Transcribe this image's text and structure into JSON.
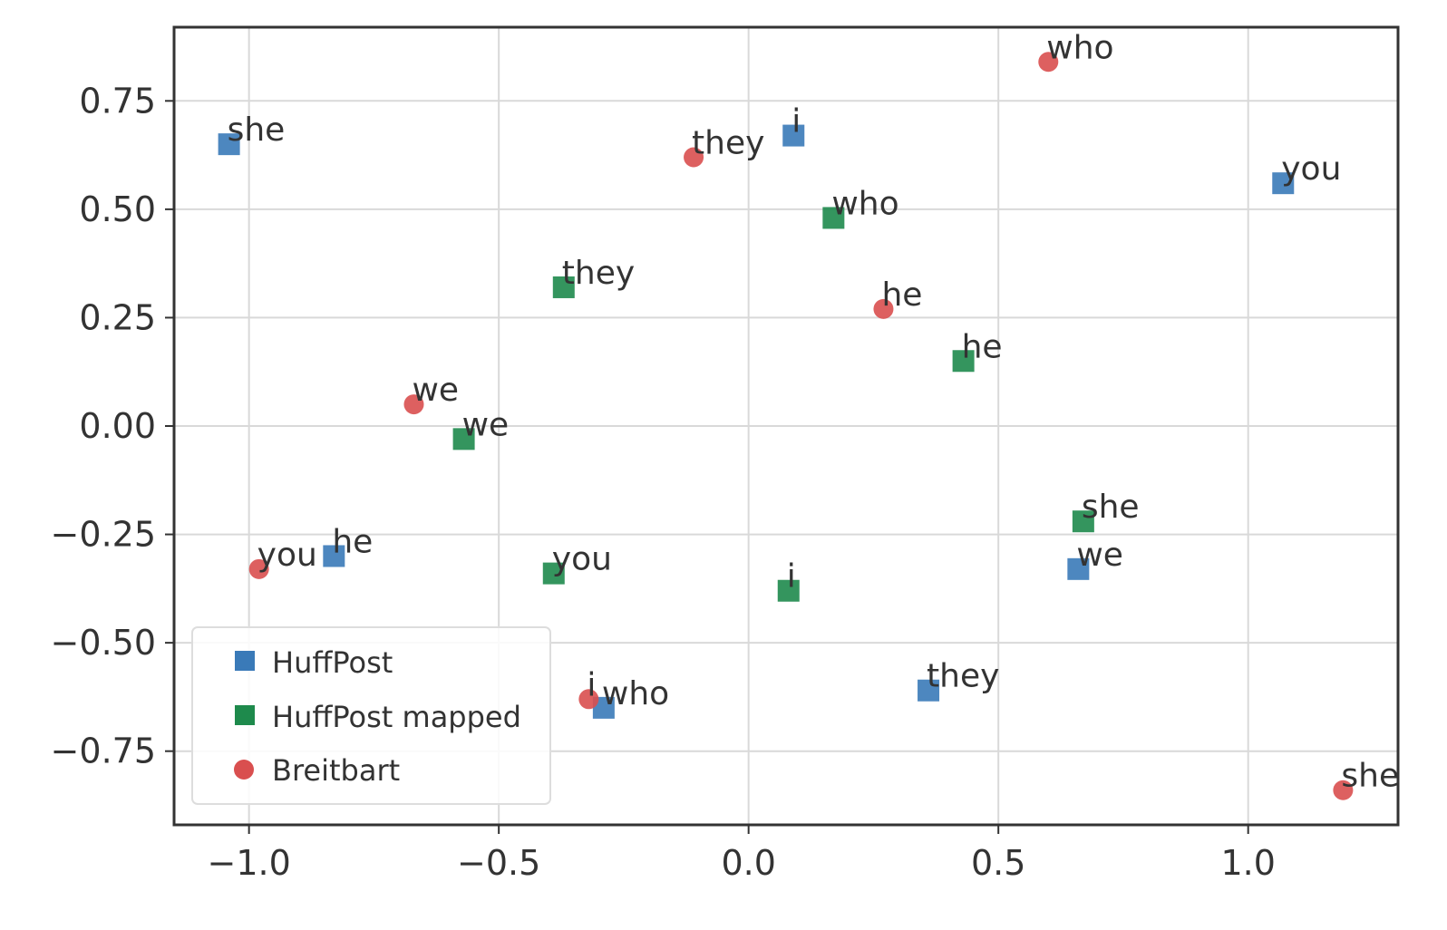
{
  "chart_data": {
    "type": "scatter",
    "title": "",
    "xlabel": "",
    "ylabel": "",
    "xlim": [
      -1.15,
      1.3
    ],
    "ylim": [
      -0.92,
      0.92
    ],
    "xticks": [
      {
        "value": -1.0,
        "label": "−1.0"
      },
      {
        "value": -0.5,
        "label": "−0.5"
      },
      {
        "value": 0.0,
        "label": "0.0"
      },
      {
        "value": 0.5,
        "label": "0.5"
      },
      {
        "value": 1.0,
        "label": "1.0"
      }
    ],
    "yticks": [
      {
        "value": 0.75,
        "label": "0.75"
      },
      {
        "value": 0.5,
        "label": "0.50"
      },
      {
        "value": 0.25,
        "label": "0.25"
      },
      {
        "value": 0.0,
        "label": "0.00"
      },
      {
        "value": -0.25,
        "label": "−0.25"
      },
      {
        "value": -0.5,
        "label": "−0.50"
      },
      {
        "value": -0.75,
        "label": "−0.75"
      }
    ],
    "grid": true,
    "legend_position": "bottom-left",
    "series": [
      {
        "name": "HuffPost",
        "marker": "square",
        "color": "#3a7ab8",
        "points": [
          {
            "x": -1.04,
            "y": 0.65,
            "label": "she"
          },
          {
            "x": 0.09,
            "y": 0.67,
            "label": "i"
          },
          {
            "x": 1.07,
            "y": 0.56,
            "label": "you"
          },
          {
            "x": -0.83,
            "y": -0.3,
            "label": "he"
          },
          {
            "x": 0.66,
            "y": -0.33,
            "label": "we"
          },
          {
            "x": -0.29,
            "y": -0.65,
            "label": "who"
          },
          {
            "x": 0.36,
            "y": -0.61,
            "label": "they"
          }
        ]
      },
      {
        "name": "HuffPost mapped",
        "marker": "square",
        "color": "#1e8a4c",
        "points": [
          {
            "x": 0.17,
            "y": 0.48,
            "label": "who"
          },
          {
            "x": -0.37,
            "y": 0.32,
            "label": "they"
          },
          {
            "x": 0.43,
            "y": 0.15,
            "label": "he"
          },
          {
            "x": -0.57,
            "y": -0.03,
            "label": "we"
          },
          {
            "x": 0.67,
            "y": -0.22,
            "label": "she"
          },
          {
            "x": -0.39,
            "y": -0.34,
            "label": "you"
          },
          {
            "x": 0.08,
            "y": -0.38,
            "label": "i"
          }
        ]
      },
      {
        "name": "Breitbart",
        "marker": "circle",
        "color": "#d94f4f",
        "points": [
          {
            "x": 0.6,
            "y": 0.84,
            "label": "who"
          },
          {
            "x": -0.11,
            "y": 0.62,
            "label": "they"
          },
          {
            "x": 0.27,
            "y": 0.27,
            "label": "he"
          },
          {
            "x": -0.67,
            "y": 0.05,
            "label": "we"
          },
          {
            "x": -0.98,
            "y": -0.33,
            "label": "you"
          },
          {
            "x": -0.32,
            "y": -0.63,
            "label": "i"
          },
          {
            "x": 1.19,
            "y": -0.84,
            "label": "she"
          }
        ]
      }
    ]
  }
}
